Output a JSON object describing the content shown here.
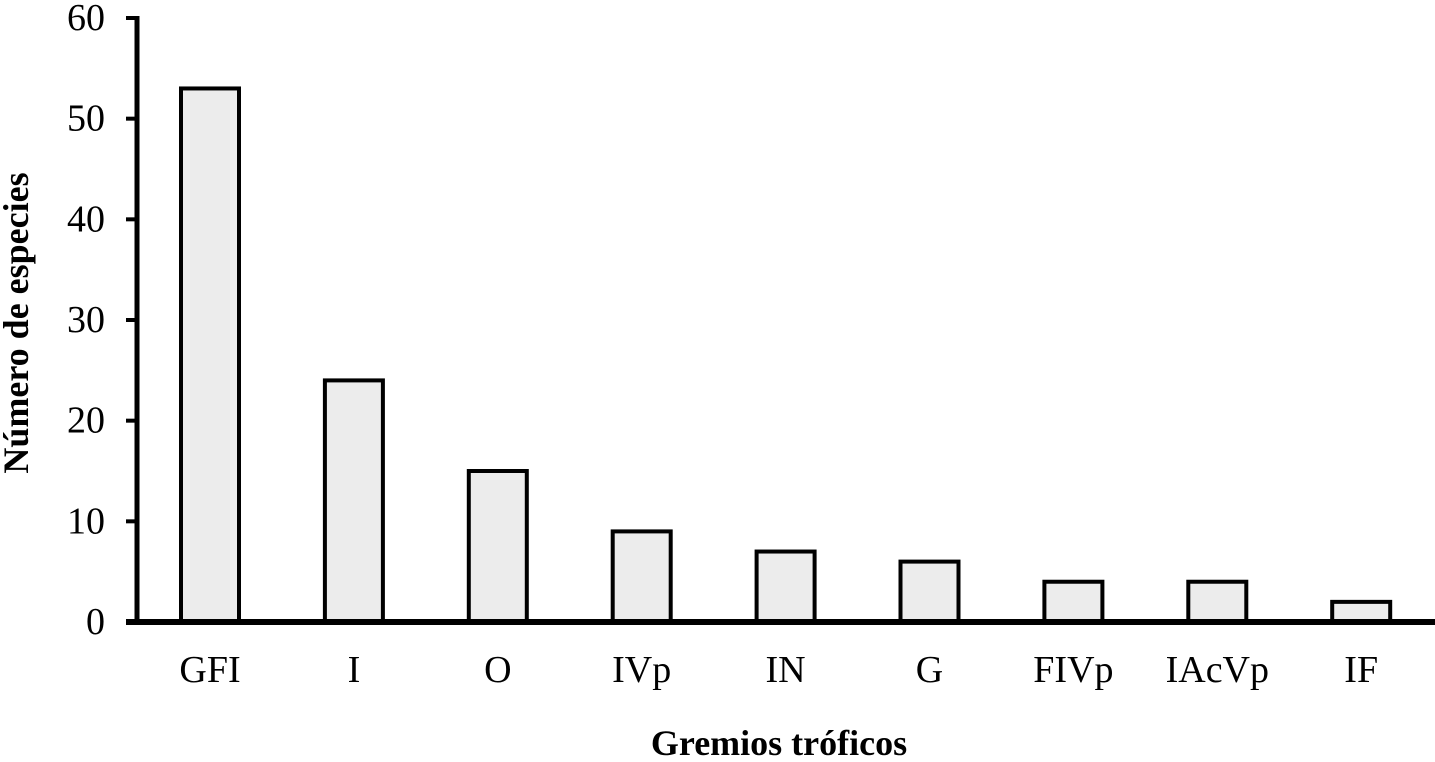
{
  "chart_data": {
    "type": "bar",
    "title": "",
    "xlabel": "Gremios tróficos",
    "ylabel": "Número de especies",
    "categories": [
      "GFI",
      "I",
      "O",
      "IVp",
      "IN",
      "G",
      "FIVp",
      "IAcVp",
      "IF"
    ],
    "values": [
      53,
      24,
      15,
      9,
      7,
      6,
      4,
      4,
      2
    ],
    "ylim": [
      0,
      60
    ],
    "yticks": [
      0,
      10,
      20,
      30,
      40,
      50,
      60
    ],
    "grid": false,
    "legend": "none",
    "colors": {
      "bar_fill": "#ececec",
      "bar_stroke": "#000000",
      "axis": "#000000"
    }
  }
}
